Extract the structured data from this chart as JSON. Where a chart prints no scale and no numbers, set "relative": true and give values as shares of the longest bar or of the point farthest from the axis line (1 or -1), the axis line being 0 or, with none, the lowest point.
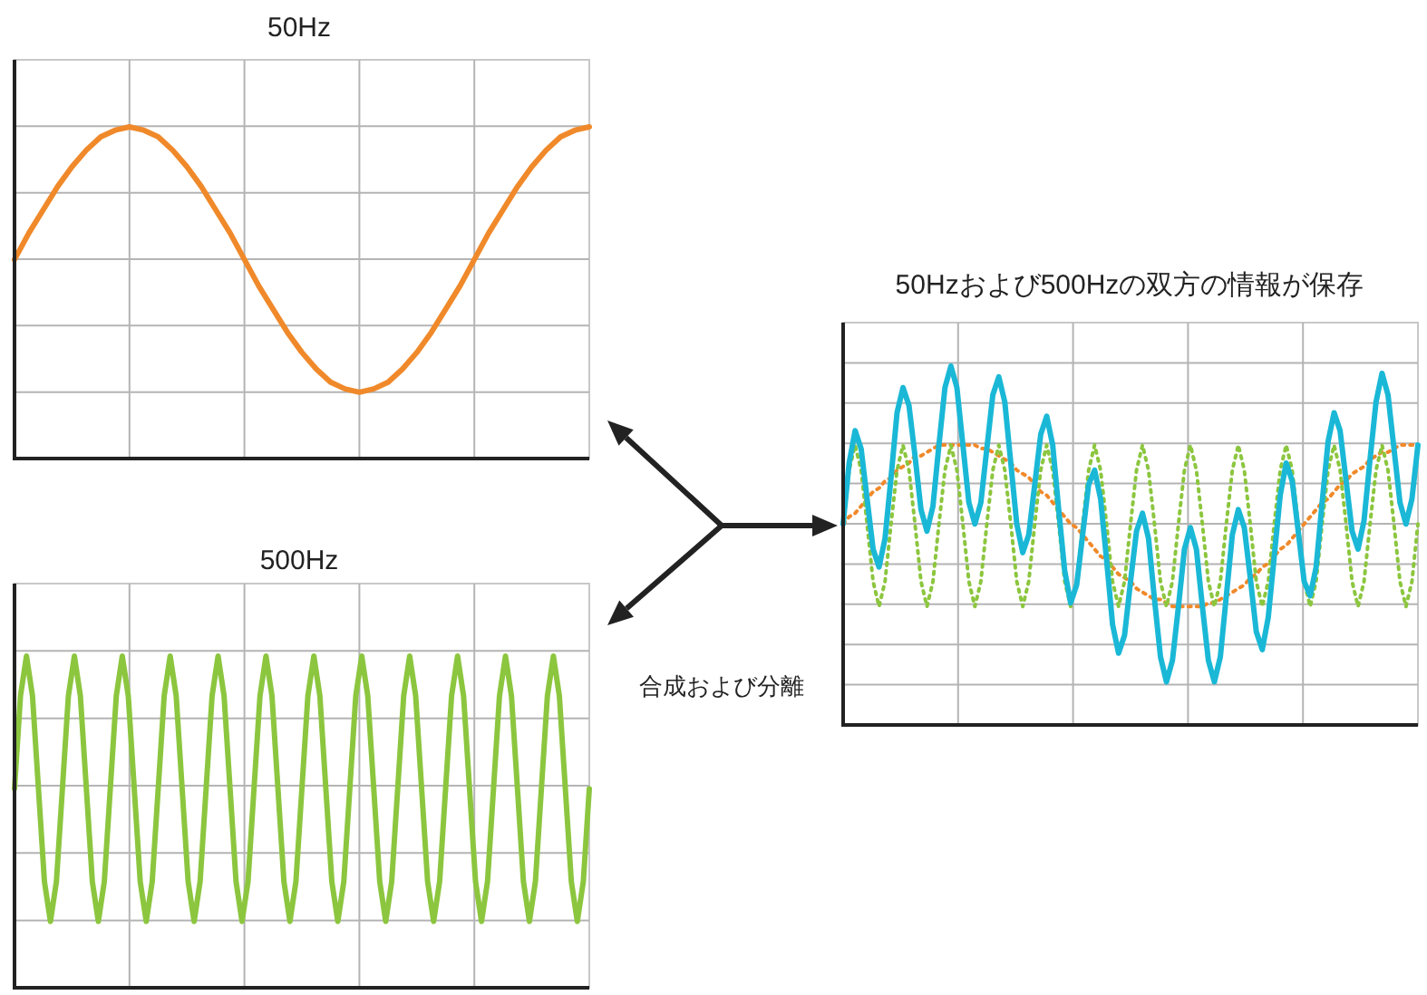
{
  "chart_data": [
    {
      "type": "line",
      "title": "50Hz",
      "relative": true,
      "grid": true,
      "categories": [
        null,
        null,
        null,
        null,
        null,
        null,
        null,
        null,
        null,
        null,
        null,
        null,
        null,
        null,
        null,
        null,
        null,
        null,
        null,
        null,
        null,
        null,
        null,
        null,
        null,
        null,
        null,
        null,
        null,
        null,
        null,
        null,
        null,
        null,
        null,
        null,
        null,
        null,
        null,
        null,
        null
      ],
      "series": [
        {
          "color": "#f0892a",
          "line_style": "solid",
          "values": [
            0.6,
            0.68,
            0.75,
            0.82,
            0.88,
            0.93,
            0.97,
            0.99,
            1.0,
            0.99,
            0.97,
            0.93,
            0.88,
            0.82,
            0.75,
            0.68,
            0.6,
            0.52,
            0.45,
            0.38,
            0.32,
            0.27,
            0.23,
            0.21,
            0.2,
            0.21,
            0.23,
            0.27,
            0.32,
            0.38,
            0.45,
            0.52,
            0.6,
            0.68,
            0.75,
            0.82,
            0.88,
            0.93,
            0.97,
            0.99,
            1.0
          ]
        }
      ]
    },
    {
      "type": "line",
      "title": "500Hz",
      "relative": true,
      "grid": true,
      "categories": [
        null,
        null,
        null,
        null,
        null,
        null,
        null,
        null,
        null,
        null,
        null,
        null,
        null,
        null,
        null,
        null,
        null,
        null,
        null,
        null,
        null,
        null,
        null,
        null,
        null,
        null,
        null,
        null,
        null,
        null,
        null,
        null,
        null,
        null,
        null,
        null,
        null,
        null,
        null,
        null,
        null,
        null,
        null,
        null,
        null,
        null,
        null,
        null,
        null,
        null,
        null,
        null,
        null,
        null,
        null,
        null,
        null,
        null,
        null,
        null,
        null,
        null,
        null,
        null,
        null,
        null,
        null,
        null,
        null,
        null,
        null,
        null,
        null,
        null,
        null,
        null,
        null,
        null,
        null,
        null,
        null,
        null,
        null,
        null,
        null,
        null,
        null,
        null,
        null,
        null,
        null,
        null,
        null,
        null,
        null,
        null,
        null
      ],
      "series": [
        {
          "color": "#8cc63f",
          "line_style": "solid",
          "values": [
            0.6,
            0.88,
            1.0,
            0.88,
            0.6,
            0.32,
            0.2,
            0.32,
            0.6,
            0.88,
            1.0,
            0.88,
            0.6,
            0.32,
            0.2,
            0.32,
            0.6,
            0.88,
            1.0,
            0.88,
            0.6,
            0.32,
            0.2,
            0.32,
            0.6,
            0.88,
            1.0,
            0.88,
            0.6,
            0.32,
            0.2,
            0.32,
            0.6,
            0.88,
            1.0,
            0.88,
            0.6,
            0.32,
            0.2,
            0.32,
            0.6,
            0.88,
            1.0,
            0.88,
            0.6,
            0.32,
            0.2,
            0.32,
            0.6,
            0.88,
            1.0,
            0.88,
            0.6,
            0.32,
            0.2,
            0.32,
            0.6,
            0.88,
            1.0,
            0.88,
            0.6,
            0.32,
            0.2,
            0.32,
            0.6,
            0.88,
            1.0,
            0.88,
            0.6,
            0.32,
            0.2,
            0.32,
            0.6,
            0.88,
            1.0,
            0.88,
            0.6,
            0.32,
            0.2,
            0.32,
            0.6,
            0.88,
            1.0,
            0.88,
            0.6,
            0.32,
            0.2,
            0.32,
            0.6,
            0.88,
            1.0,
            0.88,
            0.6,
            0.32,
            0.2,
            0.32,
            0.6
          ]
        }
      ]
    },
    {
      "type": "line",
      "title": "50Hzおよび500Hzの双方の情報が保存",
      "relative": true,
      "grid": true,
      "annotations": [
        "合成および分離"
      ],
      "categories": [
        null,
        null,
        null,
        null,
        null,
        null,
        null,
        null,
        null,
        null,
        null,
        null,
        null,
        null,
        null,
        null,
        null,
        null,
        null,
        null,
        null,
        null,
        null,
        null,
        null,
        null,
        null,
        null,
        null,
        null,
        null,
        null,
        null,
        null,
        null,
        null,
        null,
        null,
        null,
        null,
        null,
        null,
        null,
        null,
        null,
        null,
        null,
        null,
        null,
        null,
        null,
        null,
        null,
        null,
        null,
        null,
        null,
        null,
        null,
        null,
        null,
        null,
        null,
        null,
        null,
        null,
        null,
        null,
        null,
        null,
        null,
        null,
        null,
        null,
        null,
        null,
        null,
        null,
        null,
        null,
        null,
        null,
        null,
        null,
        null,
        null,
        null,
        null,
        null,
        null,
        null,
        null,
        null,
        null,
        null,
        null,
        null
      ],
      "series": [
        {
          "color": "#f0892a",
          "line_style": "dotted",
          "values": [
            0.56,
            0.58,
            0.59,
            0.61,
            0.63,
            0.65,
            0.66,
            0.68,
            0.69,
            0.71,
            0.72,
            0.73,
            0.75,
            0.75,
            0.76,
            0.77,
            0.78,
            0.78,
            0.78,
            0.78,
            0.78,
            0.78,
            0.78,
            0.77,
            0.77,
            0.76,
            0.75,
            0.74,
            0.73,
            0.71,
            0.7,
            0.69,
            0.67,
            0.65,
            0.64,
            0.62,
            0.6,
            0.58,
            0.56,
            0.55,
            0.53,
            0.51,
            0.49,
            0.47,
            0.46,
            0.44,
            0.42,
            0.41,
            0.4,
            0.38,
            0.37,
            0.36,
            0.35,
            0.35,
            0.34,
            0.33,
            0.33,
            0.33,
            0.33,
            0.33,
            0.33,
            0.34,
            0.34,
            0.35,
            0.36,
            0.37,
            0.38,
            0.39,
            0.41,
            0.42,
            0.44,
            0.45,
            0.47,
            0.49,
            0.5,
            0.52,
            0.54,
            0.56,
            0.58,
            0.6,
            0.62,
            0.63,
            0.65,
            0.67,
            0.68,
            0.7,
            0.71,
            0.72,
            0.74,
            0.75,
            0.76,
            0.76,
            0.77,
            0.78,
            0.78,
            0.78,
            0.78
          ]
        },
        {
          "color": "#8cc63f",
          "line_style": "dotted",
          "values": [
            0.56,
            0.71,
            0.78,
            0.71,
            0.56,
            0.4,
            0.33,
            0.4,
            0.56,
            0.71,
            0.78,
            0.71,
            0.56,
            0.4,
            0.33,
            0.4,
            0.56,
            0.71,
            0.78,
            0.71,
            0.56,
            0.4,
            0.33,
            0.4,
            0.56,
            0.71,
            0.78,
            0.71,
            0.56,
            0.4,
            0.33,
            0.4,
            0.56,
            0.71,
            0.78,
            0.71,
            0.56,
            0.4,
            0.33,
            0.4,
            0.56,
            0.71,
            0.78,
            0.71,
            0.56,
            0.4,
            0.33,
            0.4,
            0.56,
            0.71,
            0.78,
            0.71,
            0.56,
            0.4,
            0.33,
            0.4,
            0.56,
            0.71,
            0.78,
            0.71,
            0.56,
            0.4,
            0.33,
            0.4,
            0.56,
            0.71,
            0.78,
            0.71,
            0.56,
            0.4,
            0.33,
            0.4,
            0.56,
            0.71,
            0.78,
            0.71,
            0.56,
            0.4,
            0.33,
            0.4,
            0.56,
            0.71,
            0.78,
            0.71,
            0.56,
            0.4,
            0.33,
            0.4,
            0.56,
            0.71,
            0.78,
            0.71,
            0.56,
            0.4,
            0.33,
            0.4,
            0.56
          ]
        },
        {
          "color": "#1ab8d6",
          "line_style": "solid",
          "values": [
            0.56,
            0.73,
            0.82,
            0.77,
            0.63,
            0.49,
            0.44,
            0.52,
            0.69,
            0.87,
            0.94,
            0.89,
            0.75,
            0.6,
            0.54,
            0.61,
            0.78,
            0.94,
            1.0,
            0.94,
            0.78,
            0.62,
            0.56,
            0.62,
            0.77,
            0.92,
            0.97,
            0.9,
            0.73,
            0.56,
            0.48,
            0.53,
            0.67,
            0.81,
            0.86,
            0.78,
            0.6,
            0.43,
            0.34,
            0.39,
            0.53,
            0.67,
            0.71,
            0.63,
            0.46,
            0.28,
            0.2,
            0.25,
            0.4,
            0.54,
            0.59,
            0.52,
            0.35,
            0.19,
            0.12,
            0.18,
            0.33,
            0.49,
            0.55,
            0.49,
            0.33,
            0.18,
            0.12,
            0.19,
            0.36,
            0.53,
            0.6,
            0.55,
            0.41,
            0.26,
            0.21,
            0.3,
            0.47,
            0.64,
            0.73,
            0.68,
            0.54,
            0.4,
            0.36,
            0.44,
            0.62,
            0.79,
            0.87,
            0.82,
            0.68,
            0.54,
            0.49,
            0.57,
            0.74,
            0.9,
            0.98,
            0.92,
            0.77,
            0.62,
            0.56,
            0.63,
            0.78
          ]
        }
      ]
    }
  ]
}
